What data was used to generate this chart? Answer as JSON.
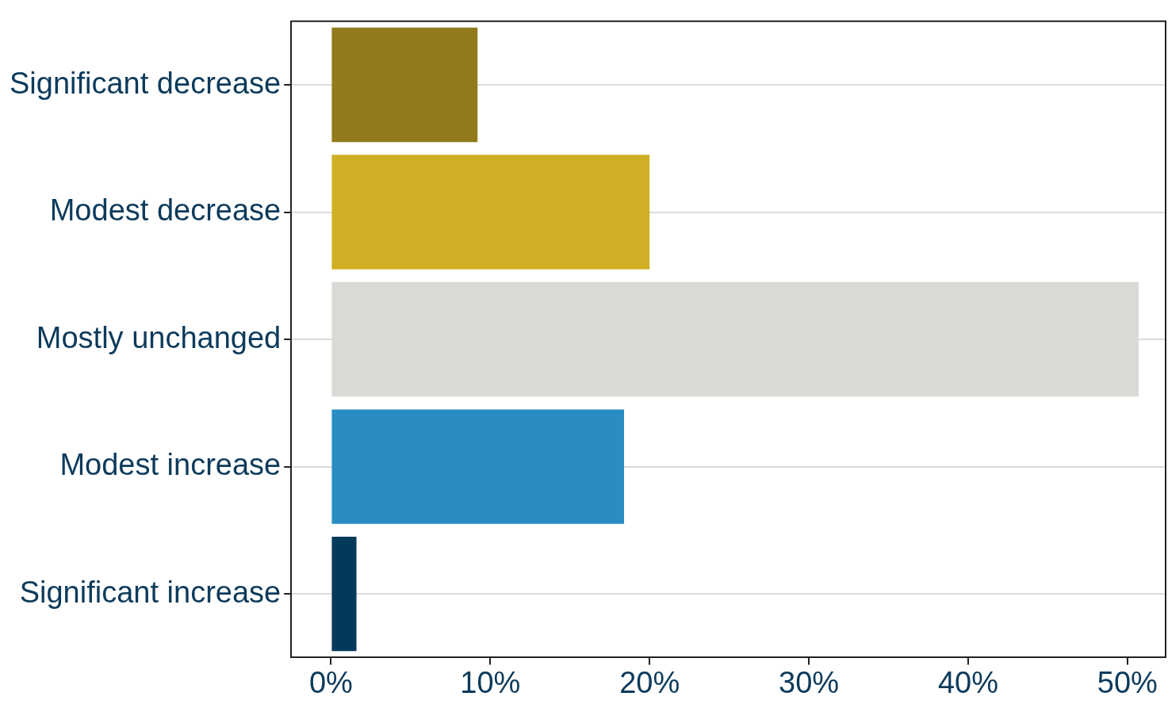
{
  "chart_data": {
    "type": "bar",
    "orientation": "horizontal",
    "categories": [
      "Significant decrease",
      "Modest decrease",
      "Mostly unchanged",
      "Modest increase",
      "Significant increase"
    ],
    "values": [
      9.2,
      20.0,
      50.7,
      18.4,
      1.6
    ],
    "colors": [
      "#917b1d",
      "#cfb024",
      "#d9dad5",
      "#2a8dc2",
      "#033a5a"
    ],
    "xlim": [
      -2.5,
      52.4
    ],
    "xticks": [
      {
        "value": 0,
        "label": "0%"
      },
      {
        "value": 10,
        "label": "10%"
      },
      {
        "value": 20,
        "label": "20%"
      },
      {
        "value": 30,
        "label": "30%"
      },
      {
        "value": 40,
        "label": "40%"
      },
      {
        "value": 50,
        "label": "50%"
      }
    ],
    "grid": "y",
    "legend": false
  }
}
